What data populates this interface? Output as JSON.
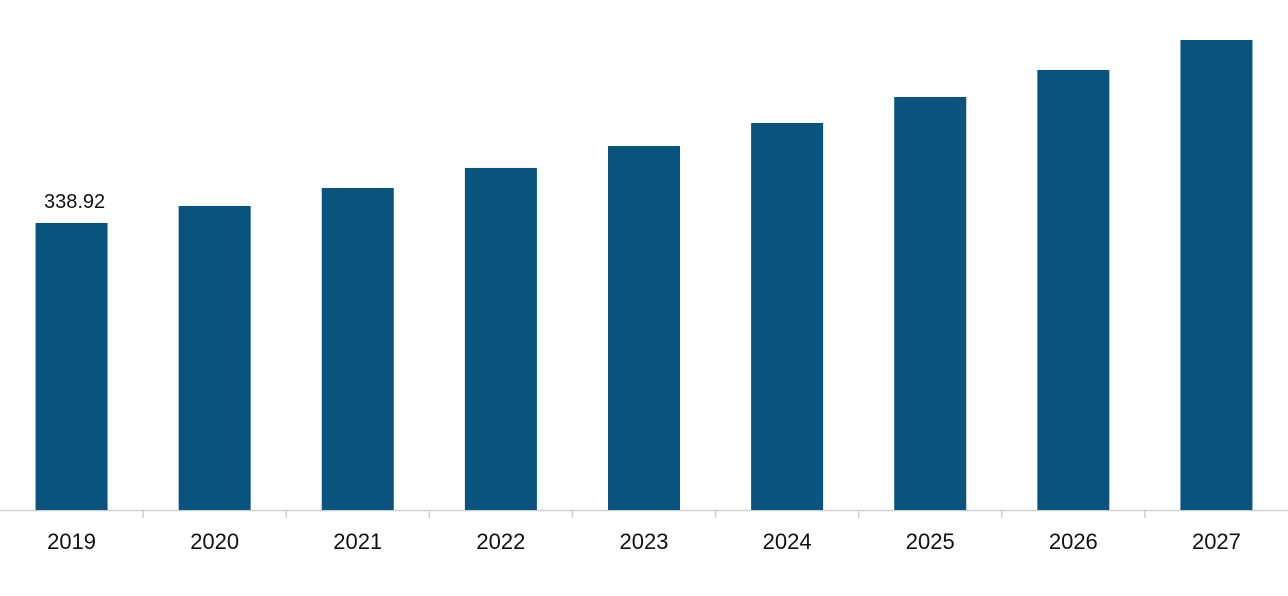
{
  "chart_data": {
    "type": "bar",
    "categories": [
      "2019",
      "2020",
      "2021",
      "2022",
      "2023",
      "2024",
      "2025",
      "2026",
      "2027"
    ],
    "values": [
      338.92,
      359.0,
      380.2,
      403.9,
      429.8,
      457.0,
      487.7,
      519.6,
      555.0
    ],
    "value_labels": [
      "338.92",
      null,
      null,
      null,
      null,
      null,
      null,
      null,
      null
    ],
    "color": "#08547f"
  }
}
